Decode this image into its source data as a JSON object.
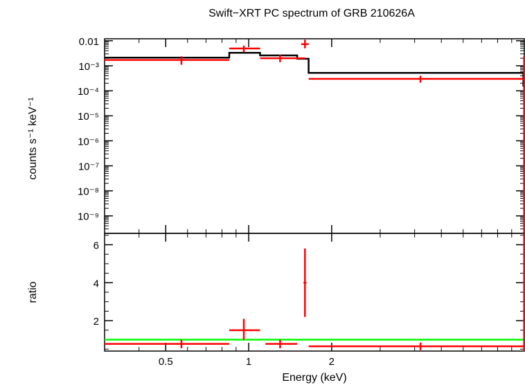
{
  "chart_data": {
    "title": "Swift−XRT PC spectrum of GRB 210626A",
    "xlabel": "Energy (keV)",
    "x_scale": "log",
    "xlim": [
      0.3,
      10.0
    ],
    "x_ticks": [
      {
        "value": 0.5,
        "label": "0.5"
      },
      {
        "value": 1,
        "label": "1"
      },
      {
        "value": 2,
        "label": "2"
      }
    ],
    "panels": [
      {
        "type": "line",
        "ylabel": "counts s⁻¹ keV⁻¹",
        "y_scale": "log",
        "ylim": [
          2e-10,
          0.012
        ],
        "y_ticks": [
          {
            "value": 0.01,
            "label": "0.01"
          },
          {
            "value": 0.001,
            "label": "10⁻³"
          },
          {
            "value": 0.0001,
            "label": "10⁻⁴"
          },
          {
            "value": 1e-05,
            "label": "10⁻⁵"
          },
          {
            "value": 1e-06,
            "label": "10⁻⁶"
          },
          {
            "value": 1e-07,
            "label": "10⁻⁷"
          },
          {
            "value": 1e-08,
            "label": "10⁻⁸"
          },
          {
            "value": 1e-09,
            "label": "10⁻⁹"
          }
        ],
        "data": {
          "color": "#ff0000",
          "points": [
            {
              "x_lo": 0.3,
              "x_hi": 0.85,
              "x": 0.57,
              "y": 0.0017,
              "y_lo": 0.0011,
              "y_hi": 0.0024
            },
            {
              "x_lo": 0.85,
              "x_hi": 1.1,
              "x": 0.96,
              "y": 0.0049,
              "y_lo": 0.0035,
              "y_hi": 0.0064
            },
            {
              "x_lo": 1.1,
              "x_hi": 1.6,
              "x": 1.3,
              "y": 0.002,
              "y_lo": 0.0014,
              "y_hi": 0.0027
            },
            {
              "x_lo": 1.55,
              "x_hi": 1.65,
              "x": 1.6,
              "y": 0.0073,
              "y_lo": 0.005,
              "y_hi": 0.011
            },
            {
              "x_lo": 1.65,
              "x_hi": 9.95,
              "x": 4.2,
              "y": 0.0003,
              "y_lo": 0.00021,
              "y_hi": 0.0004
            },
            {
              "x_lo": 9.95,
              "x_hi": 10.0,
              "x": 9.98,
              "y": 0.001,
              "y_lo": 2e-10,
              "y_hi": 0.0025
            }
          ]
        },
        "model": {
          "color": "#000000",
          "steps": [
            {
              "x_lo": 0.3,
              "x_hi": 0.85,
              "y": 0.0021
            },
            {
              "x_lo": 0.85,
              "x_hi": 1.1,
              "y": 0.0033
            },
            {
              "x_lo": 1.1,
              "x_hi": 1.5,
              "y": 0.0026
            },
            {
              "x_lo": 1.5,
              "x_hi": 1.65,
              "y": 0.0019
            },
            {
              "x_lo": 1.65,
              "x_hi": 9.92,
              "y": 0.00052
            },
            {
              "x_lo": 9.92,
              "x_hi": 10.0,
              "y": 0.00016
            }
          ]
        }
      },
      {
        "type": "line",
        "ylabel": "ratio",
        "y_scale": "linear",
        "ylim": [
          0.4,
          6.6
        ],
        "y_ticks": [
          {
            "value": 2,
            "label": "2"
          },
          {
            "value": 4,
            "label": "4"
          },
          {
            "value": 6,
            "label": "6"
          }
        ],
        "reference_line": {
          "y": 1,
          "color": "#00ff00"
        },
        "data": {
          "color": "#ff0000",
          "points": [
            {
              "x_lo": 0.3,
              "x_hi": 0.85,
              "x": 0.57,
              "y": 0.78,
              "y_lo": 0.55,
              "y_hi": 1.0
            },
            {
              "x_lo": 0.85,
              "x_hi": 1.1,
              "x": 0.96,
              "y": 1.5,
              "y_lo": 1.0,
              "y_hi": 2.1
            },
            {
              "x_lo": 1.15,
              "x_hi": 1.5,
              "x": 1.3,
              "y": 0.78,
              "y_lo": 0.55,
              "y_hi": 1.0
            },
            {
              "x_lo": 1.58,
              "x_hi": 1.62,
              "x": 1.6,
              "y": 4.0,
              "y_lo": 2.2,
              "y_hi": 5.8
            },
            {
              "x_lo": 1.65,
              "x_hi": 9.95,
              "x": 4.2,
              "y": 0.65,
              "y_lo": 0.45,
              "y_hi": 0.85
            },
            {
              "x_lo": 9.95,
              "x_hi": 10.0,
              "x": 9.98,
              "y": 6.5,
              "y_lo": 0.4,
              "y_hi": 6.6
            }
          ]
        }
      }
    ]
  }
}
